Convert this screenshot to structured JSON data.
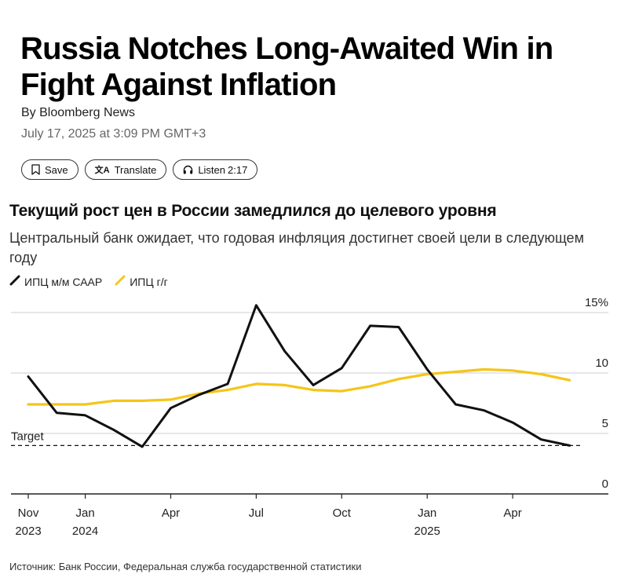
{
  "article": {
    "title": "Russia Notches Long-Awaited Win in Fight Against Inflation",
    "byline": "By Bloomberg News",
    "date": "July 17, 2025 at 3:09 PM GMT+3",
    "actions": {
      "save": "Save",
      "translate": "Translate",
      "listen": "Listen",
      "listen_duration": "2:17"
    }
  },
  "chart": {
    "title": "Текущий рост цен в России замедлился до целевого уровня",
    "subtitle": "Центральный банк ожидает, что годовая инфляция достигнет своей цели в следующем году",
    "source": "Источник: Банк России, Федеральная служба государственной статистики"
  },
  "colors": {
    "saar": "#111111",
    "yoy": "#f5c518",
    "grid": "#cccccc",
    "target": "#111111"
  },
  "chart_data": {
    "type": "line",
    "title": "Текущий рост цен в России замедлился до целевого уровня",
    "subtitle": "Центральный банк ожидает, что годовая инфляция достигнет своей цели в следующем году",
    "x_ticks": [
      {
        "month": "Nov",
        "year": "2023",
        "date": "2023-11"
      },
      {
        "month": "Jan",
        "year": "2024",
        "date": "2024-01"
      },
      {
        "month": "Apr",
        "year": "",
        "date": "2024-04"
      },
      {
        "month": "Jul",
        "year": "",
        "date": "2024-07"
      },
      {
        "month": "Oct",
        "year": "",
        "date": "2024-10"
      },
      {
        "month": "Jan",
        "year": "2025",
        "date": "2025-01"
      },
      {
        "month": "Apr",
        "year": "",
        "date": "2025-04"
      }
    ],
    "y_ticks": [
      "15%",
      "10",
      "5",
      "0"
    ],
    "y_tick_values": [
      15,
      10,
      5,
      0
    ],
    "ylim": [
      0,
      15
    ],
    "target": {
      "label": "Target",
      "value": 4
    },
    "series": [
      {
        "name": "ИПЦ м/м СААР",
        "color": "#111111",
        "x": [
          "2023-11",
          "2023-12",
          "2024-01",
          "2024-02",
          "2024-03",
          "2024-04",
          "2024-05",
          "2024-06",
          "2024-07",
          "2024-08",
          "2024-09",
          "2024-10",
          "2024-11",
          "2024-12",
          "2025-01",
          "2025-02",
          "2025-03",
          "2025-04",
          "2025-05",
          "2025-06"
        ],
        "y": [
          9.7,
          6.7,
          6.5,
          5.3,
          3.9,
          7.1,
          8.2,
          9.1,
          15.6,
          11.8,
          9.0,
          10.4,
          13.9,
          13.8,
          10.3,
          7.4,
          6.9,
          5.9,
          4.5,
          4.0
        ]
      },
      {
        "name": "ИПЦ г/г",
        "color": "#f5c518",
        "x": [
          "2023-11",
          "2023-12",
          "2024-01",
          "2024-02",
          "2024-03",
          "2024-04",
          "2024-05",
          "2024-06",
          "2024-07",
          "2024-08",
          "2024-09",
          "2024-10",
          "2024-11",
          "2024-12",
          "2025-01",
          "2025-02",
          "2025-03",
          "2025-04",
          "2025-05",
          "2025-06"
        ],
        "y": [
          7.4,
          7.4,
          7.4,
          7.7,
          7.7,
          7.8,
          8.3,
          8.6,
          9.1,
          9.0,
          8.6,
          8.5,
          8.9,
          9.5,
          9.9,
          10.1,
          10.3,
          10.2,
          9.9,
          9.4
        ]
      }
    ],
    "grid": true,
    "legend_position": "top-left"
  }
}
